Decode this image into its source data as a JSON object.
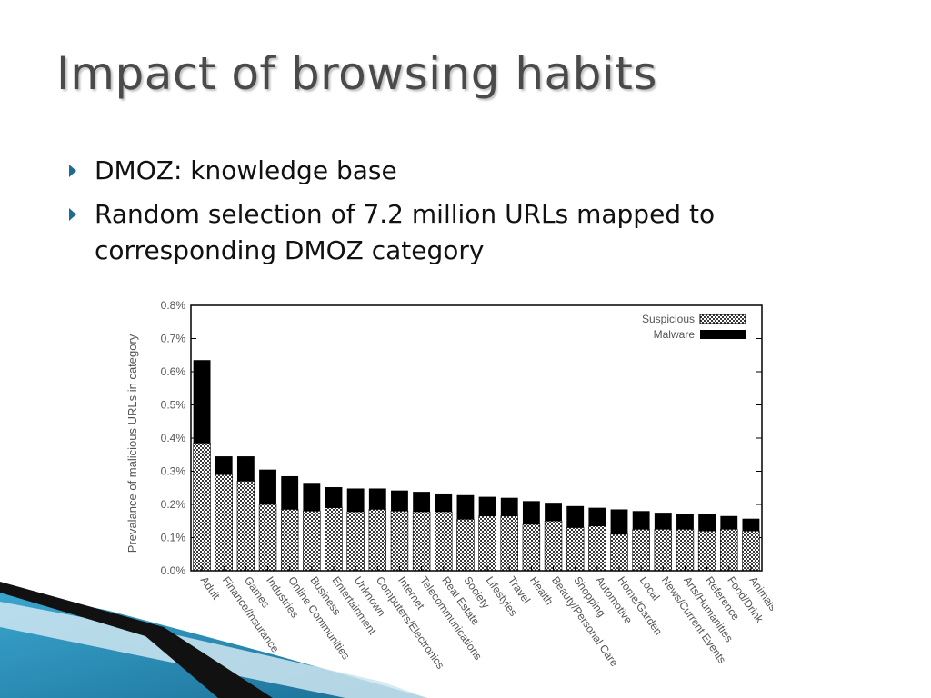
{
  "slide": {
    "title": "Impact of browsing habits",
    "bullets": [
      "DMOZ: knowledge base",
      "Random selection of 7.2 million URLs mapped to corresponding DMOZ category"
    ]
  },
  "colors": {
    "accent": "#1f6c8f",
    "deco_dark": "#111111",
    "deco_teal": "#2a8db5"
  },
  "chart_data": {
    "type": "bar",
    "stacked": true,
    "title": "",
    "xlabel": "",
    "ylabel": "Prevalance of malicious URLs in category",
    "ylim": [
      0,
      0.8
    ],
    "yticks": [
      "0.0%",
      "0.1%",
      "0.2%",
      "0.3%",
      "0.4%",
      "0.5%",
      "0.6%",
      "0.7%",
      "0.8%"
    ],
    "legend_position": "top-right",
    "categories": [
      "Adult",
      "Finance/Insurance",
      "Games",
      "Industries",
      "Online Communities",
      "Business",
      "Entertainment",
      "Unknown",
      "Computers/Electronics",
      "Internet",
      "Telecommunications",
      "Real Estate",
      "Society",
      "Lifestyles",
      "Travel",
      "Health",
      "Beauty/Personal Care",
      "Shopping",
      "Automotive",
      "Home/Garden",
      "Local",
      "News/Current Events",
      "Arts/Humanities",
      "Reference",
      "Food/Drink",
      "Animals"
    ],
    "series": [
      {
        "name": "Suspicious",
        "pattern": "checkered",
        "values": [
          0.385,
          0.29,
          0.27,
          0.2,
          0.185,
          0.18,
          0.19,
          0.178,
          0.185,
          0.18,
          0.178,
          0.178,
          0.155,
          0.165,
          0.165,
          0.14,
          0.15,
          0.13,
          0.135,
          0.11,
          0.125,
          0.125,
          0.125,
          0.12,
          0.125,
          0.12
        ]
      },
      {
        "name": "Malware",
        "color": "#000000",
        "values": [
          0.25,
          0.055,
          0.075,
          0.105,
          0.1,
          0.085,
          0.062,
          0.07,
          0.063,
          0.062,
          0.06,
          0.055,
          0.073,
          0.058,
          0.055,
          0.07,
          0.055,
          0.065,
          0.055,
          0.075,
          0.055,
          0.05,
          0.045,
          0.05,
          0.04,
          0.037
        ]
      }
    ]
  }
}
